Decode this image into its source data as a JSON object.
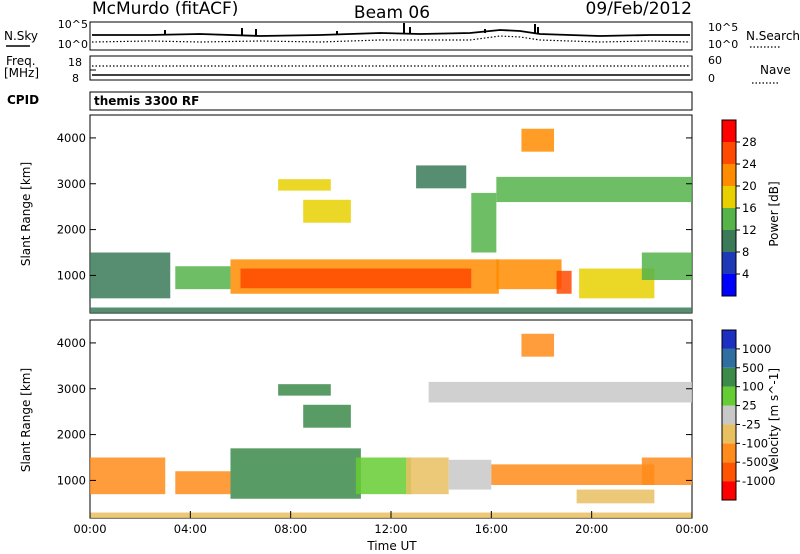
{
  "header": {
    "station": "McMurdo (fitACF)",
    "beam": "Beam 06",
    "date": "09/Feb/2012"
  },
  "status_panels": {
    "left_labels": {
      "nsky": "N.Sky",
      "freq_line1": "Freq.",
      "freq_line2": "[MHz]",
      "cpid": "CPID"
    },
    "right_labels": {
      "nsearch": "N.Search",
      "nave": "Nave"
    },
    "noise_axis": {
      "left_top": "10^5",
      "left_bottom": "10^0",
      "right_top": "10^5",
      "right_bottom": "10^0"
    },
    "freq_axis": {
      "left_top": "18",
      "left_bottom": "8",
      "right_top": "60",
      "right_bottom": "0"
    },
    "cpid_text": "themis 3300 RF"
  },
  "chart_data": [
    {
      "type": "heatmap",
      "ylabel": "Slant Range [km]",
      "colorbar_label": "Power [dB]",
      "colorbar_ticks": [
        "28",
        "24",
        "20",
        "16",
        "12",
        "8",
        "4"
      ],
      "colorbar_colors": [
        "#0000ff",
        "#1d39b8",
        "#3a7a58",
        "#55b34a",
        "#e8d000",
        "#ff8c00",
        "#ff4a00",
        "#ff0000"
      ],
      "y_ticks": [
        "4000",
        "3000",
        "2000",
        "1000"
      ],
      "ylim": [
        180,
        4500
      ],
      "xlim": [
        0,
        24
      ],
      "regions": [
        {
          "x0": 5.6,
          "x1": 16.3,
          "y0": 600,
          "y1": 1350,
          "level": 2
        },
        {
          "x0": 6.0,
          "x1": 15.2,
          "y0": 720,
          "y1": 1150,
          "level": 1
        },
        {
          "x0": 16.2,
          "x1": 18.8,
          "y0": 700,
          "y1": 1350,
          "level": 2
        },
        {
          "x0": 18.6,
          "x1": 19.2,
          "y0": 600,
          "y1": 1100,
          "level": 1
        },
        {
          "x0": 19.5,
          "x1": 22.5,
          "y0": 500,
          "y1": 1150,
          "level": 3
        },
        {
          "x0": 22.0,
          "x1": 24.0,
          "y0": 900,
          "y1": 1500,
          "level": 4
        },
        {
          "x0": 0.0,
          "x1": 3.2,
          "y0": 500,
          "y1": 1500,
          "level": 5
        },
        {
          "x0": 3.4,
          "x1": 5.6,
          "y0": 700,
          "y1": 1200,
          "level": 4
        },
        {
          "x0": 7.5,
          "x1": 9.6,
          "y0": 2850,
          "y1": 3100,
          "level": 3
        },
        {
          "x0": 8.5,
          "x1": 10.4,
          "y0": 2150,
          "y1": 2650,
          "level": 3
        },
        {
          "x0": 13.0,
          "x1": 15.0,
          "y0": 2900,
          "y1": 3400,
          "level": 5
        },
        {
          "x0": 15.2,
          "x1": 16.2,
          "y0": 1500,
          "y1": 2800,
          "level": 4
        },
        {
          "x0": 16.2,
          "x1": 24.0,
          "y0": 2600,
          "y1": 3150,
          "level": 4
        },
        {
          "x0": 17.2,
          "x1": 18.5,
          "y0": 3700,
          "y1": 4200,
          "level": 2
        },
        {
          "x0": 0.0,
          "x1": 24.0,
          "y0": 180,
          "y1": 300,
          "level": 5
        }
      ]
    },
    {
      "type": "heatmap",
      "xlabel": "Time UT",
      "ylabel": "Slant Range [km]",
      "colorbar_label": "Velocity [m s^-1]",
      "colorbar_ticks": [
        "1000",
        "500",
        "100",
        "25",
        "-25",
        "-100",
        "-500",
        "-1000"
      ],
      "colorbar_colors": [
        "#ff0000",
        "#ff5500",
        "#ff8c1a",
        "#e8c060",
        "#c8c8c8",
        "#66cc33",
        "#3c8a4a",
        "#2e6fa0",
        "#1c2fc0"
      ],
      "x_ticks": [
        "00:00",
        "04:00",
        "08:00",
        "12:00",
        "16:00",
        "20:00",
        "00:00"
      ],
      "y_ticks": [
        "4000",
        "3000",
        "2000",
        "1000"
      ],
      "ylim": [
        180,
        4500
      ],
      "xlim": [
        0,
        24
      ],
      "regions": [
        {
          "x0": 0.0,
          "x1": 3.0,
          "y0": 700,
          "y1": 1500,
          "level": 2
        },
        {
          "x0": 3.4,
          "x1": 5.6,
          "y0": 700,
          "y1": 1200,
          "level": 2
        },
        {
          "x0": 5.6,
          "x1": 10.8,
          "y0": 600,
          "y1": 1700,
          "level": 6
        },
        {
          "x0": 10.6,
          "x1": 12.8,
          "y0": 700,
          "y1": 1500,
          "level": 5
        },
        {
          "x0": 12.6,
          "x1": 14.3,
          "y0": 700,
          "y1": 1500,
          "level": 3
        },
        {
          "x0": 14.3,
          "x1": 16.0,
          "y0": 800,
          "y1": 1450,
          "level": 4
        },
        {
          "x0": 16.0,
          "x1": 22.5,
          "y0": 900,
          "y1": 1350,
          "level": 2
        },
        {
          "x0": 22.0,
          "x1": 24.0,
          "y0": 900,
          "y1": 1500,
          "level": 2
        },
        {
          "x0": 7.5,
          "x1": 9.6,
          "y0": 2850,
          "y1": 3100,
          "level": 6
        },
        {
          "x0": 8.5,
          "x1": 10.4,
          "y0": 2150,
          "y1": 2650,
          "level": 6
        },
        {
          "x0": 13.5,
          "x1": 24.0,
          "y0": 2700,
          "y1": 3150,
          "level": 4
        },
        {
          "x0": 17.2,
          "x1": 18.5,
          "y0": 3700,
          "y1": 4200,
          "level": 2
        },
        {
          "x0": 19.4,
          "x1": 22.5,
          "y0": 500,
          "y1": 800,
          "level": 3
        },
        {
          "x0": 0.0,
          "x1": 24.0,
          "y0": 180,
          "y1": 300,
          "level": 3
        }
      ]
    }
  ]
}
